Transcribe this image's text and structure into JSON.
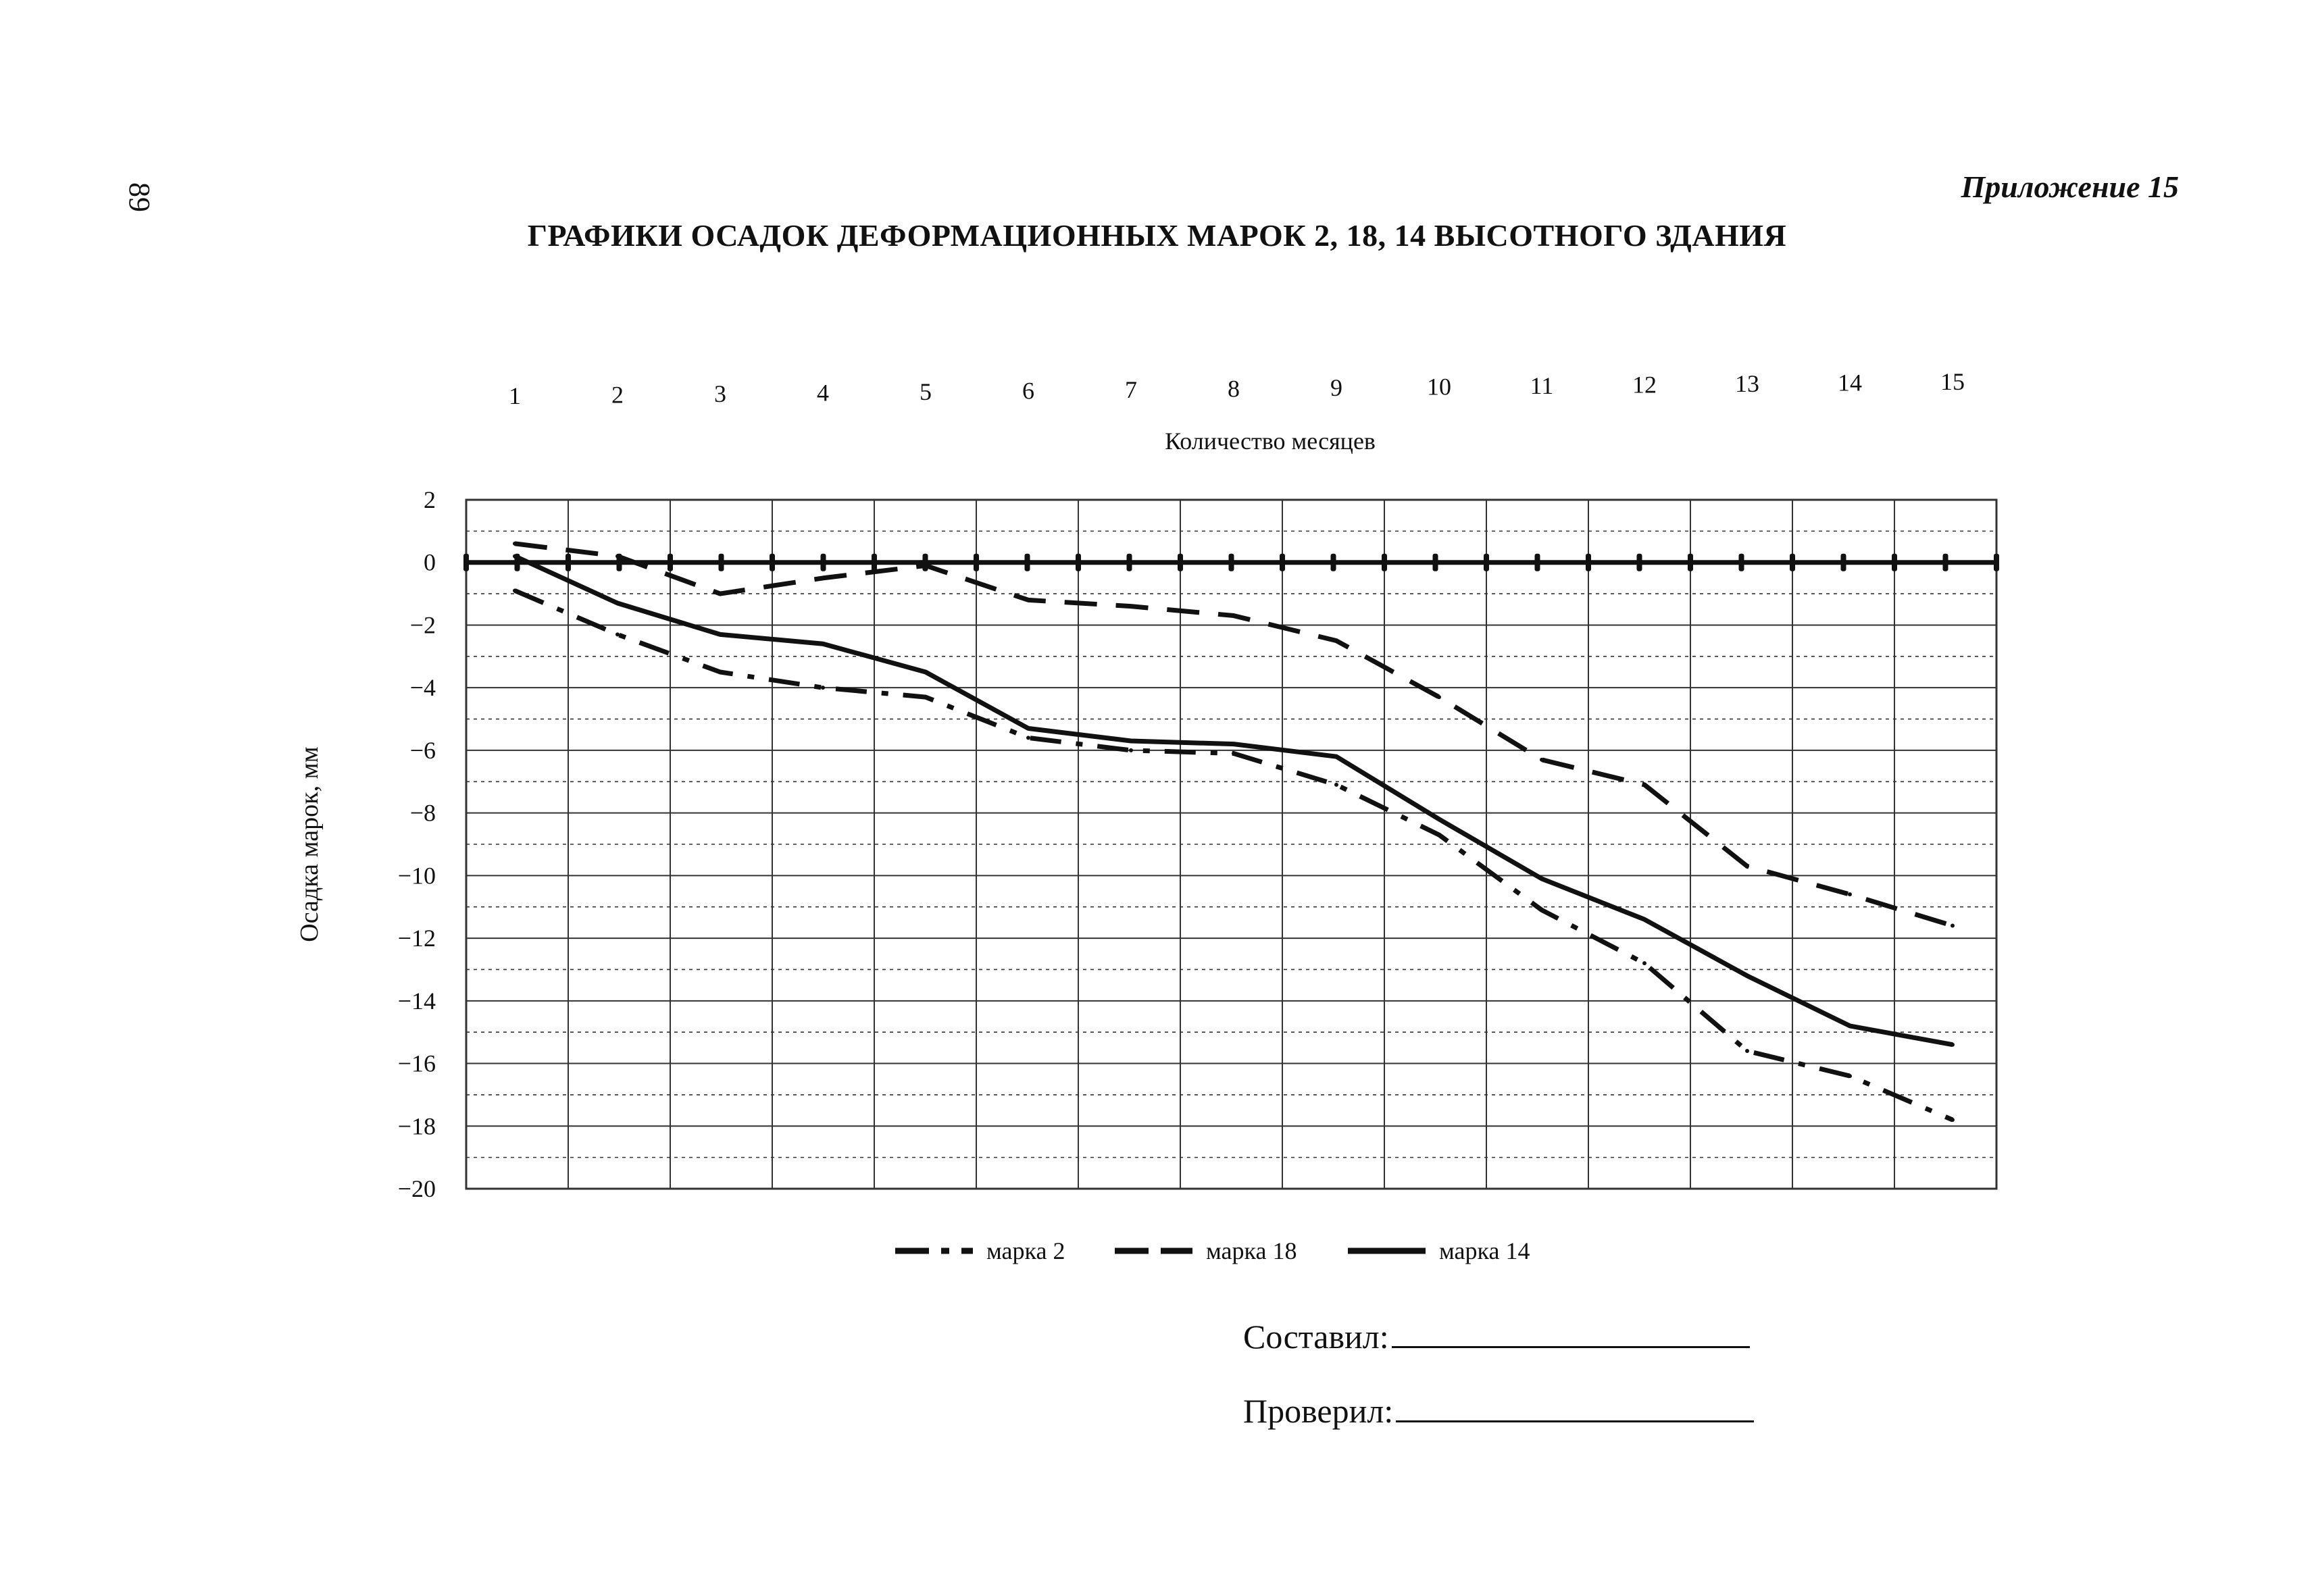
{
  "page": {
    "page_number": "89",
    "appendix": "Приложение 15",
    "title": "ГРАФИКИ ОСАДОК ДЕФОРМАЦИОННЫХ МАРОК 2, 18, 14 ВЫСОТНОГО ЗДАНИЯ"
  },
  "signatures": {
    "compiled_label": "Составил:",
    "checked_label": "Проверил:"
  },
  "chart_data": {
    "type": "line",
    "title": "",
    "xlabel": "Количество месяцев",
    "ylabel": "Осадка марок, мм",
    "x": [
      1,
      2,
      3,
      4,
      5,
      6,
      7,
      8,
      9,
      10,
      11,
      12,
      13,
      14,
      15
    ],
    "x_tick_labels": [
      "1",
      "2",
      "3",
      "4",
      "5",
      "6",
      "7",
      "8",
      "9",
      "10",
      "11",
      "12",
      "13",
      "14",
      "15"
    ],
    "x_axis_position": "top",
    "y_ticks": [
      2,
      0,
      -2,
      -4,
      -6,
      -8,
      -10,
      -12,
      -14,
      -16,
      -18,
      -20
    ],
    "y_tick_labels": [
      "2",
      "0",
      "−2",
      "−4",
      "−6",
      "−8",
      "−10",
      "−12",
      "−14",
      "−16",
      "−18",
      "−20"
    ],
    "ylim": [
      -20,
      2
    ],
    "grid": true,
    "legend_position": "bottom",
    "series": [
      {
        "name": "марка 2",
        "style": "dash-dot",
        "values": [
          -0.9,
          -2.3,
          -3.5,
          -4.0,
          -4.3,
          -5.6,
          -6.0,
          -6.1,
          -7.1,
          -8.7,
          -11.1,
          -12.8,
          -15.6,
          -16.4,
          -17.8
        ]
      },
      {
        "name": "марка 18",
        "style": "dashed",
        "values": [
          0.6,
          0.2,
          -1.0,
          -0.5,
          -0.1,
          -1.2,
          -1.4,
          -1.7,
          -2.5,
          -4.3,
          -6.3,
          -7.1,
          -9.7,
          -10.6,
          -11.6
        ]
      },
      {
        "name": "марка 14",
        "style": "solid",
        "values": [
          0.2,
          -1.3,
          -2.3,
          -2.6,
          -3.5,
          -5.3,
          -5.7,
          -5.8,
          -6.2,
          -8.2,
          -10.1,
          -11.4,
          -13.2,
          -14.8,
          -15.4
        ]
      }
    ],
    "zero_line_series": {
      "style": "solid-with-markers",
      "values": [
        0,
        0,
        0,
        0,
        0,
        0,
        0,
        0,
        0,
        0,
        0,
        0,
        0,
        0,
        0
      ]
    },
    "colors": {
      "ink": "#111111",
      "grid": "#333333",
      "background": "#ffffff"
    }
  }
}
